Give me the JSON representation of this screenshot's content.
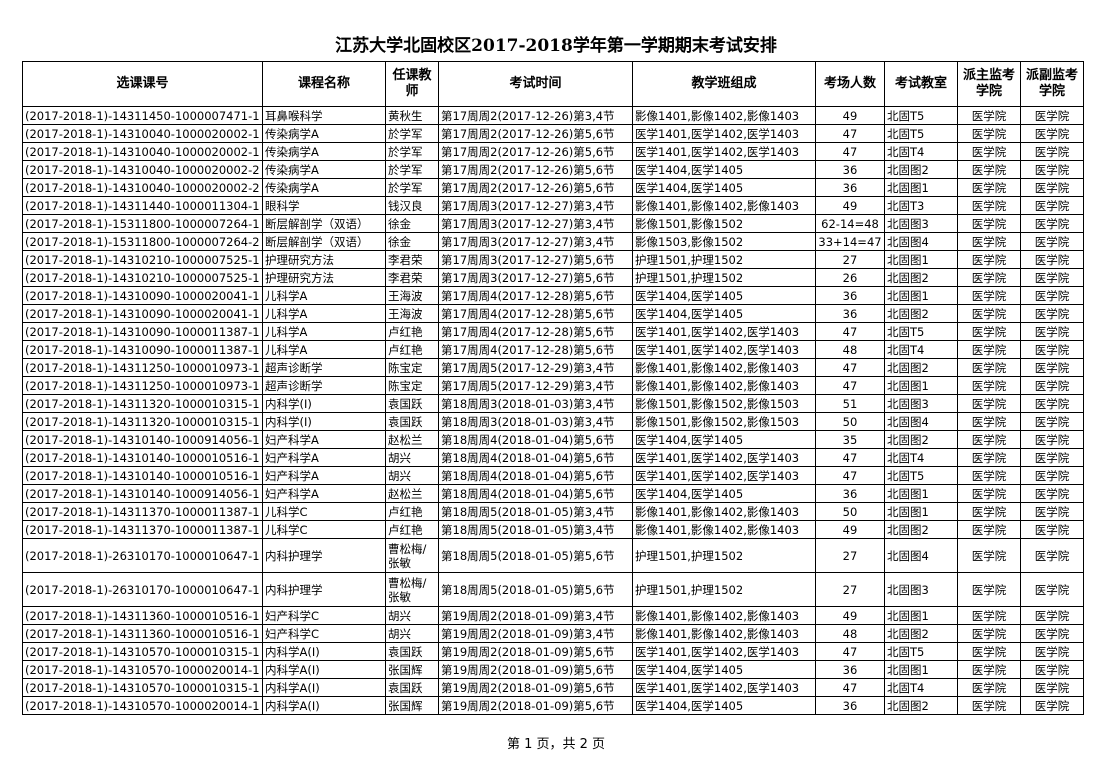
{
  "title": "江苏大学北固校区2017-2018学年第一学期期末考试安排",
  "headers": [
    "选课课号",
    "课程名称",
    "任课教师",
    "考试时间",
    "教学班组成",
    "考场人数",
    "考试教室",
    "派主监考学院",
    "派副监考学院"
  ],
  "rows": [
    [
      "(2017-2018-1)-14311450-1000007471-1",
      "耳鼻喉科学",
      "黄秋生",
      "第17周周2(2017-12-26)第3,4节",
      "影像1401,影像1402,影像1403",
      "49",
      "北固T5",
      "医学院",
      "医学院"
    ],
    [
      "(2017-2018-1)-14310040-1000020002-1",
      "传染病学A",
      "於学军",
      "第17周周2(2017-12-26)第5,6节",
      "医学1401,医学1402,医学1403",
      "47",
      "北固T5",
      "医学院",
      "医学院"
    ],
    [
      "(2017-2018-1)-14310040-1000020002-1",
      "传染病学A",
      "於学军",
      "第17周周2(2017-12-26)第5,6节",
      "医学1401,医学1402,医学1403",
      "47",
      "北固T4",
      "医学院",
      "医学院"
    ],
    [
      "(2017-2018-1)-14310040-1000020002-2",
      "传染病学A",
      "於学军",
      "第17周周2(2017-12-26)第5,6节",
      "医学1404,医学1405",
      "36",
      "北固图2",
      "医学院",
      "医学院"
    ],
    [
      "(2017-2018-1)-14310040-1000020002-2",
      "传染病学A",
      "於学军",
      "第17周周2(2017-12-26)第5,6节",
      "医学1404,医学1405",
      "36",
      "北固图1",
      "医学院",
      "医学院"
    ],
    [
      "(2017-2018-1)-14311440-1000011304-1",
      "眼科学",
      "钱汉良",
      "第17周周3(2017-12-27)第3,4节",
      "影像1401,影像1402,影像1403",
      "49",
      "北固T3",
      "医学院",
      "医学院"
    ],
    [
      "(2017-2018-1)-15311800-1000007264-1",
      "断层解剖学（双语）",
      "徐金",
      "第17周周3(2017-12-27)第3,4节",
      "影像1501,影像1502",
      "62-14=48",
      "北固图3",
      "医学院",
      "医学院"
    ],
    [
      "(2017-2018-1)-15311800-1000007264-2",
      "断层解剖学（双语）",
      "徐金",
      "第17周周3(2017-12-27)第3,4节",
      "影像1503,影像1502",
      "33+14=47",
      "北固图4",
      "医学院",
      "医学院"
    ],
    [
      "(2017-2018-1)-14310210-1000007525-1",
      "护理研究方法",
      "李君荣",
      "第17周周3(2017-12-27)第5,6节",
      "护理1501,护理1502",
      "27",
      "北固图1",
      "医学院",
      "医学院"
    ],
    [
      "(2017-2018-1)-14310210-1000007525-1",
      "护理研究方法",
      "李君荣",
      "第17周周3(2017-12-27)第5,6节",
      "护理1501,护理1502",
      "26",
      "北固图2",
      "医学院",
      "医学院"
    ],
    [
      "(2017-2018-1)-14310090-1000020041-1",
      "儿科学A",
      "王海波",
      "第17周周4(2017-12-28)第5,6节",
      "医学1404,医学1405",
      "36",
      "北固图1",
      "医学院",
      "医学院"
    ],
    [
      "(2017-2018-1)-14310090-1000020041-1",
      "儿科学A",
      "王海波",
      "第17周周4(2017-12-28)第5,6节",
      "医学1404,医学1405",
      "36",
      "北固图2",
      "医学院",
      "医学院"
    ],
    [
      "(2017-2018-1)-14310090-1000011387-1",
      "儿科学A",
      "卢红艳",
      "第17周周4(2017-12-28)第5,6节",
      "医学1401,医学1402,医学1403",
      "47",
      "北固T5",
      "医学院",
      "医学院"
    ],
    [
      "(2017-2018-1)-14310090-1000011387-1",
      "儿科学A",
      "卢红艳",
      "第17周周4(2017-12-28)第5,6节",
      "医学1401,医学1402,医学1403",
      "48",
      "北固T4",
      "医学院",
      "医学院"
    ],
    [
      "(2017-2018-1)-14311250-1000010973-1",
      "超声诊断学",
      "陈宝定",
      "第17周周5(2017-12-29)第3,4节",
      "影像1401,影像1402,影像1403",
      "47",
      "北固图2",
      "医学院",
      "医学院"
    ],
    [
      "(2017-2018-1)-14311250-1000010973-1",
      "超声诊断学",
      "陈宝定",
      "第17周周5(2017-12-29)第3,4节",
      "影像1401,影像1402,影像1403",
      "47",
      "北固图1",
      "医学院",
      "医学院"
    ],
    [
      "(2017-2018-1)-14311320-1000010315-1",
      "内科学(I)",
      "袁国跃",
      "第18周周3(2018-01-03)第3,4节",
      "影像1501,影像1502,影像1503",
      "51",
      "北固图3",
      "医学院",
      "医学院"
    ],
    [
      "(2017-2018-1)-14311320-1000010315-1",
      "内科学(I)",
      "袁国跃",
      "第18周周3(2018-01-03)第3,4节",
      "影像1501,影像1502,影像1503",
      "50",
      "北固图4",
      "医学院",
      "医学院"
    ],
    [
      "(2017-2018-1)-14310140-1000914056-1",
      "妇产科学A",
      "赵松兰",
      "第18周周4(2018-01-04)第5,6节",
      "医学1404,医学1405",
      "35",
      "北固图2",
      "医学院",
      "医学院"
    ],
    [
      "(2017-2018-1)-14310140-1000010516-1",
      "妇产科学A",
      "胡兴",
      "第18周周4(2018-01-04)第5,6节",
      "医学1401,医学1402,医学1403",
      "47",
      "北固T4",
      "医学院",
      "医学院"
    ],
    [
      "(2017-2018-1)-14310140-1000010516-1",
      "妇产科学A",
      "胡兴",
      "第18周周4(2018-01-04)第5,6节",
      "医学1401,医学1402,医学1403",
      "47",
      "北固T5",
      "医学院",
      "医学院"
    ],
    [
      "(2017-2018-1)-14310140-1000914056-1",
      "妇产科学A",
      "赵松兰",
      "第18周周4(2018-01-04)第5,6节",
      "医学1404,医学1405",
      "36",
      "北固图1",
      "医学院",
      "医学院"
    ],
    [
      "(2017-2018-1)-14311370-1000011387-1",
      "儿科学C",
      "卢红艳",
      "第18周周5(2018-01-05)第3,4节",
      "影像1401,影像1402,影像1403",
      "50",
      "北固图1",
      "医学院",
      "医学院"
    ],
    [
      "(2017-2018-1)-14311370-1000011387-1",
      "儿科学C",
      "卢红艳",
      "第18周周5(2018-01-05)第3,4节",
      "影像1401,影像1402,影像1403",
      "49",
      "北固图2",
      "医学院",
      "医学院"
    ],
    [
      "(2017-2018-1)-26310170-1000010647-1",
      "内科护理学",
      "曹松梅/张敏",
      "第18周周5(2018-01-05)第5,6节",
      "护理1501,护理1502",
      "27",
      "北固图4",
      "医学院",
      "医学院"
    ],
    [
      "(2017-2018-1)-26310170-1000010647-1",
      "内科护理学",
      "曹松梅/张敏",
      "第18周周5(2018-01-05)第5,6节",
      "护理1501,护理1502",
      "27",
      "北固图3",
      "医学院",
      "医学院"
    ],
    [
      "(2017-2018-1)-14311360-1000010516-1",
      "妇产科学C",
      "胡兴",
      "第19周周2(2018-01-09)第3,4节",
      "影像1401,影像1402,影像1403",
      "49",
      "北固图1",
      "医学院",
      "医学院"
    ],
    [
      "(2017-2018-1)-14311360-1000010516-1",
      "妇产科学C",
      "胡兴",
      "第19周周2(2018-01-09)第3,4节",
      "影像1401,影像1402,影像1403",
      "48",
      "北固图2",
      "医学院",
      "医学院"
    ],
    [
      "(2017-2018-1)-14310570-1000010315-1",
      "内科学A(I)",
      "袁国跃",
      "第19周周2(2018-01-09)第5,6节",
      "医学1401,医学1402,医学1403",
      "47",
      "北固T5",
      "医学院",
      "医学院"
    ],
    [
      "(2017-2018-1)-14310570-1000020014-1",
      "内科学A(I)",
      "张国辉",
      "第19周周2(2018-01-09)第5,6节",
      "医学1404,医学1405",
      "36",
      "北固图1",
      "医学院",
      "医学院"
    ],
    [
      "(2017-2018-1)-14310570-1000010315-1",
      "内科学A(I)",
      "袁国跃",
      "第19周周2(2018-01-09)第5,6节",
      "医学1401,医学1402,医学1403",
      "47",
      "北固T4",
      "医学院",
      "医学院"
    ],
    [
      "(2017-2018-1)-14310570-1000020014-1",
      "内科学A(I)",
      "张国辉",
      "第19周周2(2018-01-09)第5,6节",
      "医学1404,医学1405",
      "36",
      "北固图2",
      "医学院",
      "医学院"
    ]
  ],
  "footer": "第 1 页，共 2 页"
}
